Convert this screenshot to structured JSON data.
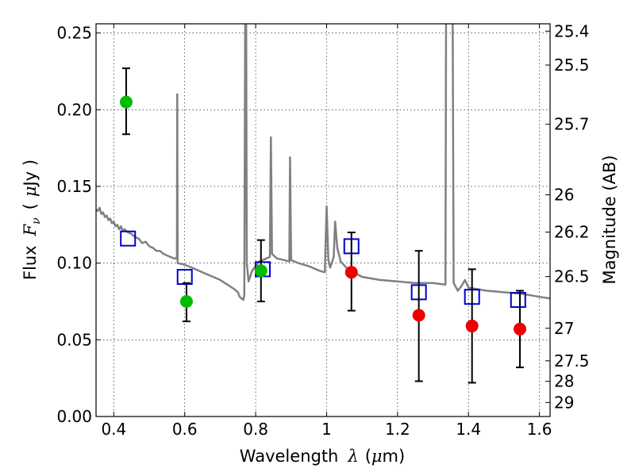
{
  "chart_data": {
    "type": "scatter",
    "xlabel_main": "Wavelength",
    "xlabel_symbol": "λ",
    "xlabel_unit_open": "(",
    "xlabel_unit_mu": "μ",
    "xlabel_unit_rest": "m)",
    "ylabel_main": "Flux",
    "ylabel_symbol": "F",
    "ylabel_sub": "ν",
    "ylabel_unit_open": "(",
    "ylabel_unit_mu": "μ",
    "ylabel_unit_rest": "Jy )",
    "y2label": "Magnitude (AB)",
    "xlim": [
      0.35,
      1.63
    ],
    "ylim": [
      0.0,
      0.256
    ],
    "grid": true,
    "x_ticks": [
      {
        "value": 0.4,
        "label": "0.4"
      },
      {
        "value": 0.6,
        "label": "0.6"
      },
      {
        "value": 0.8,
        "label": "0.8"
      },
      {
        "value": 1.0,
        "label": "1"
      },
      {
        "value": 1.2,
        "label": "1.2"
      },
      {
        "value": 1.4,
        "label": "1.4"
      },
      {
        "value": 1.6,
        "label": "1.6"
      }
    ],
    "y_ticks": [
      {
        "value": 0.0,
        "label": "0.00"
      },
      {
        "value": 0.05,
        "label": "0.05"
      },
      {
        "value": 0.1,
        "label": "0.10"
      },
      {
        "value": 0.15,
        "label": "0.15"
      },
      {
        "value": 0.2,
        "label": "0.20"
      },
      {
        "value": 0.25,
        "label": "0.25"
      }
    ],
    "y2_ticks": [
      {
        "label": "25.4",
        "flux": 0.2512
      },
      {
        "label": "25.5",
        "flux": 0.2291
      },
      {
        "label": "25.7",
        "flux": 0.1905
      },
      {
        "label": "26",
        "flux": 0.1445
      },
      {
        "label": "26.2",
        "flux": 0.1202
      },
      {
        "label": "26.5",
        "flux": 0.0912
      },
      {
        "label": "27",
        "flux": 0.0575
      },
      {
        "label": "27.5",
        "flux": 0.0363
      },
      {
        "label": "28",
        "flux": 0.0229
      },
      {
        "label": "29",
        "flux": 0.0091
      }
    ],
    "series": [
      {
        "style": "model-line",
        "color": "#808080",
        "points": [
          [
            0.35,
            0.135
          ],
          [
            0.355,
            0.134
          ],
          [
            0.36,
            0.136
          ],
          [
            0.365,
            0.132
          ],
          [
            0.37,
            0.133
          ],
          [
            0.375,
            0.13
          ],
          [
            0.38,
            0.131
          ],
          [
            0.385,
            0.128
          ],
          [
            0.39,
            0.129
          ],
          [
            0.395,
            0.126
          ],
          [
            0.4,
            0.127
          ],
          [
            0.405,
            0.124
          ],
          [
            0.41,
            0.125
          ],
          [
            0.415,
            0.122
          ],
          [
            0.42,
            0.124
          ],
          [
            0.425,
            0.121
          ],
          [
            0.43,
            0.122
          ],
          [
            0.44,
            0.12
          ],
          [
            0.45,
            0.119
          ],
          [
            0.46,
            0.117
          ],
          [
            0.47,
            0.116
          ],
          [
            0.48,
            0.113
          ],
          [
            0.49,
            0.114
          ],
          [
            0.5,
            0.111
          ],
          [
            0.51,
            0.11
          ],
          [
            0.52,
            0.108
          ],
          [
            0.53,
            0.108
          ],
          [
            0.54,
            0.106
          ],
          [
            0.55,
            0.105
          ],
          [
            0.56,
            0.104
          ],
          [
            0.57,
            0.103
          ],
          [
            0.578,
            0.103
          ],
          [
            0.579,
            0.21
          ],
          [
            0.58,
            0.1
          ],
          [
            0.6,
            0.099
          ],
          [
            0.62,
            0.097
          ],
          [
            0.64,
            0.095
          ],
          [
            0.66,
            0.093
          ],
          [
            0.68,
            0.091
          ],
          [
            0.7,
            0.089
          ],
          [
            0.72,
            0.086
          ],
          [
            0.74,
            0.083
          ],
          [
            0.75,
            0.081
          ],
          [
            0.755,
            0.078
          ],
          [
            0.76,
            0.077
          ],
          [
            0.765,
            0.076
          ],
          [
            0.768,
            0.079
          ],
          [
            0.771,
            0.29
          ],
          [
            0.773,
            0.29
          ],
          [
            0.775,
            0.1
          ],
          [
            0.78,
            0.088
          ],
          [
            0.79,
            0.095
          ],
          [
            0.8,
            0.098
          ],
          [
            0.81,
            0.101
          ],
          [
            0.82,
            0.102
          ],
          [
            0.83,
            0.103
          ],
          [
            0.84,
            0.104
          ],
          [
            0.843,
            0.182
          ],
          [
            0.846,
            0.106
          ],
          [
            0.86,
            0.103
          ],
          [
            0.88,
            0.102
          ],
          [
            0.895,
            0.101
          ],
          [
            0.897,
            0.169
          ],
          [
            0.9,
            0.102
          ],
          [
            0.92,
            0.1
          ],
          [
            0.95,
            0.098
          ],
          [
            0.98,
            0.095
          ],
          [
            0.995,
            0.094
          ],
          [
            1.0,
            0.137
          ],
          [
            1.005,
            0.102
          ],
          [
            1.01,
            0.097
          ],
          [
            1.02,
            0.104
          ],
          [
            1.024,
            0.127
          ],
          [
            1.03,
            0.11
          ],
          [
            1.04,
            0.101
          ],
          [
            1.06,
            0.096
          ],
          [
            1.1,
            0.091
          ],
          [
            1.15,
            0.089
          ],
          [
            1.2,
            0.088
          ],
          [
            1.25,
            0.087
          ],
          [
            1.3,
            0.087
          ],
          [
            1.335,
            0.086
          ],
          [
            1.337,
            0.29
          ],
          [
            1.355,
            0.29
          ],
          [
            1.358,
            0.087
          ],
          [
            1.37,
            0.082
          ],
          [
            1.38,
            0.085
          ],
          [
            1.39,
            0.089
          ],
          [
            1.4,
            0.084
          ],
          [
            1.45,
            0.082
          ],
          [
            1.5,
            0.081
          ],
          [
            1.55,
            0.08
          ],
          [
            1.6,
            0.078
          ],
          [
            1.63,
            0.077
          ]
        ]
      },
      {
        "style": "open-square",
        "color": "#0000cc",
        "points": [
          [
            0.44,
            0.116
          ],
          [
            0.6,
            0.091
          ],
          [
            0.82,
            0.096
          ],
          [
            1.07,
            0.111
          ],
          [
            1.26,
            0.081
          ],
          [
            1.41,
            0.078
          ],
          [
            1.54,
            0.076
          ]
        ]
      },
      {
        "style": "filled-circle",
        "color": "#00bb00",
        "points": [
          {
            "x": 0.435,
            "y": 0.205,
            "lo": 0.184,
            "hi": 0.227
          },
          {
            "x": 0.605,
            "y": 0.075,
            "lo": 0.062,
            "hi": 0.087
          },
          {
            "x": 0.815,
            "y": 0.095,
            "lo": 0.075,
            "hi": 0.115
          }
        ]
      },
      {
        "style": "filled-circle",
        "color": "#ee0000",
        "points": [
          {
            "x": 1.07,
            "y": 0.094,
            "lo": 0.069,
            "hi": 0.12
          },
          {
            "x": 1.26,
            "y": 0.066,
            "lo": 0.023,
            "hi": 0.108
          },
          {
            "x": 1.41,
            "y": 0.059,
            "lo": 0.022,
            "hi": 0.096
          },
          {
            "x": 1.545,
            "y": 0.057,
            "lo": 0.032,
            "hi": 0.082
          }
        ]
      }
    ]
  }
}
